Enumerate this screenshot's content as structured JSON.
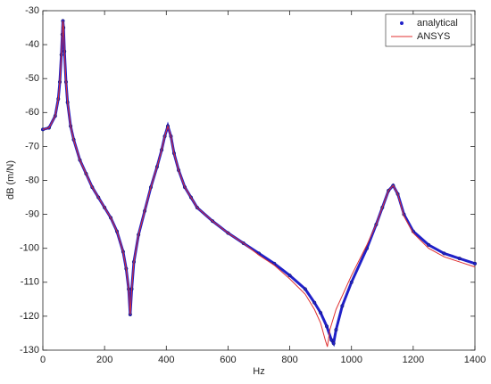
{
  "chart_data": {
    "type": "line",
    "xlabel": "Hz",
    "ylabel": "dB (m/N)",
    "xlim": [
      0,
      1400
    ],
    "ylim": [
      -130,
      -30
    ],
    "xticks": [
      0,
      200,
      400,
      600,
      800,
      1000,
      1200,
      1400
    ],
    "yticks": [
      -130,
      -120,
      -110,
      -100,
      -90,
      -80,
      -70,
      -60,
      -50,
      -40,
      -30
    ],
    "legend": "upper right",
    "series": [
      {
        "name": "analytical",
        "color": "#2020c8",
        "marker": "dot",
        "x": [
          0,
          20,
          40,
          50,
          55,
          60,
          63,
          65,
          67,
          70,
          75,
          80,
          90,
          100,
          120,
          140,
          160,
          180,
          200,
          220,
          240,
          260,
          270,
          278,
          283,
          288,
          295,
          310,
          330,
          350,
          370,
          385,
          395,
          405,
          415,
          425,
          440,
          460,
          480,
          500,
          550,
          600,
          650,
          700,
          750,
          800,
          850,
          880,
          900,
          920,
          935,
          942,
          950,
          970,
          1000,
          1050,
          1080,
          1100,
          1120,
          1135,
          1150,
          1170,
          1200,
          1250,
          1300,
          1350,
          1400
        ],
        "values": [
          -65,
          -64.5,
          -61,
          -56,
          -51,
          -43,
          -37,
          -33,
          -35,
          -42,
          -51,
          -57,
          -64,
          -68,
          -74,
          -78,
          -82,
          -85,
          -88,
          -91,
          -95,
          -101,
          -106,
          -112,
          -119.5,
          -112,
          -104,
          -96,
          -89,
          -82,
          -76,
          -71,
          -67,
          -64,
          -67,
          -72,
          -77,
          -82,
          -85,
          -88,
          -92,
          -95.5,
          -98.5,
          -101.5,
          -104.5,
          -108,
          -112,
          -116,
          -119,
          -123,
          -127,
          -128,
          -124,
          -117,
          -110,
          -100,
          -93,
          -88,
          -83,
          -81.5,
          -84,
          -90,
          -95,
          -99,
          -101.5,
          -103,
          -104.5
        ]
      },
      {
        "name": "ANSYS",
        "color": "#e03030",
        "marker": "none",
        "x": [
          0,
          20,
          40,
          50,
          55,
          60,
          63,
          65,
          67,
          70,
          75,
          80,
          90,
          100,
          120,
          140,
          160,
          180,
          200,
          220,
          240,
          260,
          270,
          278,
          283,
          288,
          295,
          310,
          330,
          350,
          370,
          385,
          395,
          405,
          415,
          425,
          440,
          460,
          480,
          500,
          550,
          600,
          650,
          700,
          750,
          800,
          850,
          880,
          900,
          915,
          922,
          930,
          950,
          970,
          1000,
          1050,
          1080,
          1100,
          1120,
          1135,
          1150,
          1170,
          1200,
          1250,
          1300,
          1350,
          1400
        ],
        "values": [
          -65,
          -64.5,
          -61,
          -56,
          -51,
          -43,
          -37,
          -33,
          -35,
          -42,
          -51,
          -57,
          -64,
          -68,
          -74,
          -78,
          -82,
          -85,
          -88,
          -91,
          -95,
          -101,
          -106,
          -112,
          -119.5,
          -112,
          -104,
          -96,
          -89,
          -82,
          -76,
          -71,
          -67,
          -64,
          -67,
          -72,
          -77,
          -82,
          -85,
          -88,
          -92,
          -95.5,
          -98.5,
          -102,
          -105,
          -109,
          -113.5,
          -118,
          -122,
          -127,
          -129,
          -124,
          -118,
          -114,
          -108,
          -99,
          -93,
          -88,
          -83,
          -81.5,
          -84,
          -90.5,
          -95.5,
          -100,
          -102.5,
          -104,
          -105.5
        ]
      }
    ]
  }
}
